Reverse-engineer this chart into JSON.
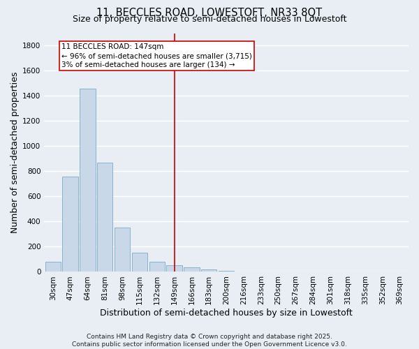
{
  "title_line1": "11, BECCLES ROAD, LOWESTOFT, NR33 8QT",
  "title_line2": "Size of property relative to semi-detached houses in Lowestoft",
  "xlabel": "Distribution of semi-detached houses by size in Lowestoft",
  "ylabel": "Number of semi-detached properties",
  "categories": [
    "30sqm",
    "47sqm",
    "64sqm",
    "81sqm",
    "98sqm",
    "115sqm",
    "132sqm",
    "149sqm",
    "166sqm",
    "183sqm",
    "200sqm",
    "216sqm",
    "233sqm",
    "250sqm",
    "267sqm",
    "284sqm",
    "301sqm",
    "318sqm",
    "335sqm",
    "352sqm",
    "369sqm"
  ],
  "values": [
    80,
    760,
    1460,
    870,
    355,
    155,
    80,
    50,
    35,
    20,
    10,
    5,
    3,
    2,
    1,
    1,
    0,
    0,
    0,
    0,
    5
  ],
  "bar_color": "#c8d8e8",
  "bar_edge_color": "#7aaac8",
  "vline_color": "#cc0000",
  "annotation_line1": "11 BECCLES ROAD: 147sqm",
  "annotation_line2": "← 96% of semi-detached houses are smaller (3,715)",
  "annotation_line3": "3% of semi-detached houses are larger (134) →",
  "annotation_box_color": "#ffffff",
  "annotation_box_edge": "#cc0000",
  "ylim": [
    0,
    1900
  ],
  "yticks": [
    0,
    200,
    400,
    600,
    800,
    1000,
    1200,
    1400,
    1600,
    1800
  ],
  "background_color": "#e8eef4",
  "grid_color": "#ffffff",
  "footer_text": "Contains HM Land Registry data © Crown copyright and database right 2025.\nContains public sector information licensed under the Open Government Licence v3.0.",
  "title_fontsize": 10.5,
  "subtitle_fontsize": 9,
  "axis_label_fontsize": 9,
  "tick_fontsize": 7.5,
  "annotation_fontsize": 7.5,
  "footer_fontsize": 6.5
}
